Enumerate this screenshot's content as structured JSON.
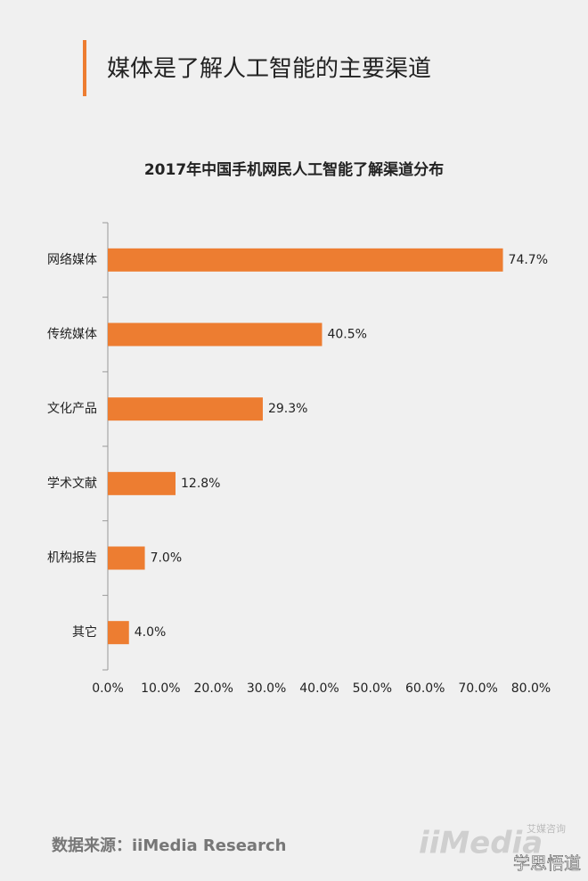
{
  "header": {
    "title": "媒体是了解人工智能的主要渠道"
  },
  "chart_data": {
    "type": "hbar",
    "title": "2017年中国手机网民人工智能了解渠道分布",
    "categories": [
      "网络媒体",
      "传统媒体",
      "文化产品",
      "学术文献",
      "机构报告",
      "其它"
    ],
    "values": [
      74.7,
      40.5,
      29.3,
      12.8,
      7.0,
      4.0
    ],
    "value_labels": [
      "74.7%",
      "40.5%",
      "29.3%",
      "12.8%",
      "7.0%",
      "4.0%"
    ],
    "color": "#ed7d31",
    "xlim": [
      0,
      80
    ],
    "xticks": [
      {
        "value": 0,
        "label": "0.0%"
      },
      {
        "value": 10,
        "label": "10.0%"
      },
      {
        "value": 20,
        "label": "20.0%"
      },
      {
        "value": 30,
        "label": "30.0%"
      },
      {
        "value": 40,
        "label": "40.0%"
      },
      {
        "value": 50,
        "label": "50.0%"
      },
      {
        "value": 60,
        "label": "60.0%"
      },
      {
        "value": 70,
        "label": "70.0%"
      },
      {
        "value": 80,
        "label": "80.0%"
      }
    ],
    "grid": false
  },
  "footer": {
    "source": "数据来源：iiMedia Research",
    "logo": "iiMedia",
    "logo_sub": "艾媒咨询",
    "account": "学思悟道"
  }
}
